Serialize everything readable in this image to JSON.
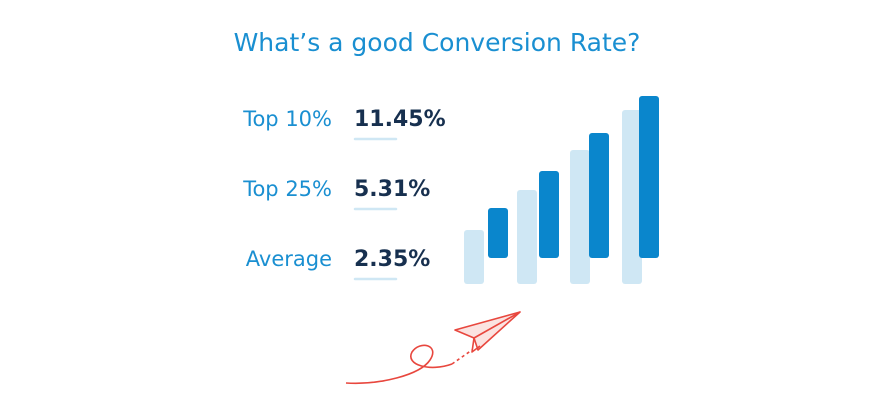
{
  "title": "What’s a good Conversion Rate?",
  "stats": [
    {
      "label": "Top 10%",
      "value": "11.45%"
    },
    {
      "label": "Top 25%",
      "value": "5.31%"
    },
    {
      "label": "Average",
      "value": "2.35%"
    }
  ]
}
